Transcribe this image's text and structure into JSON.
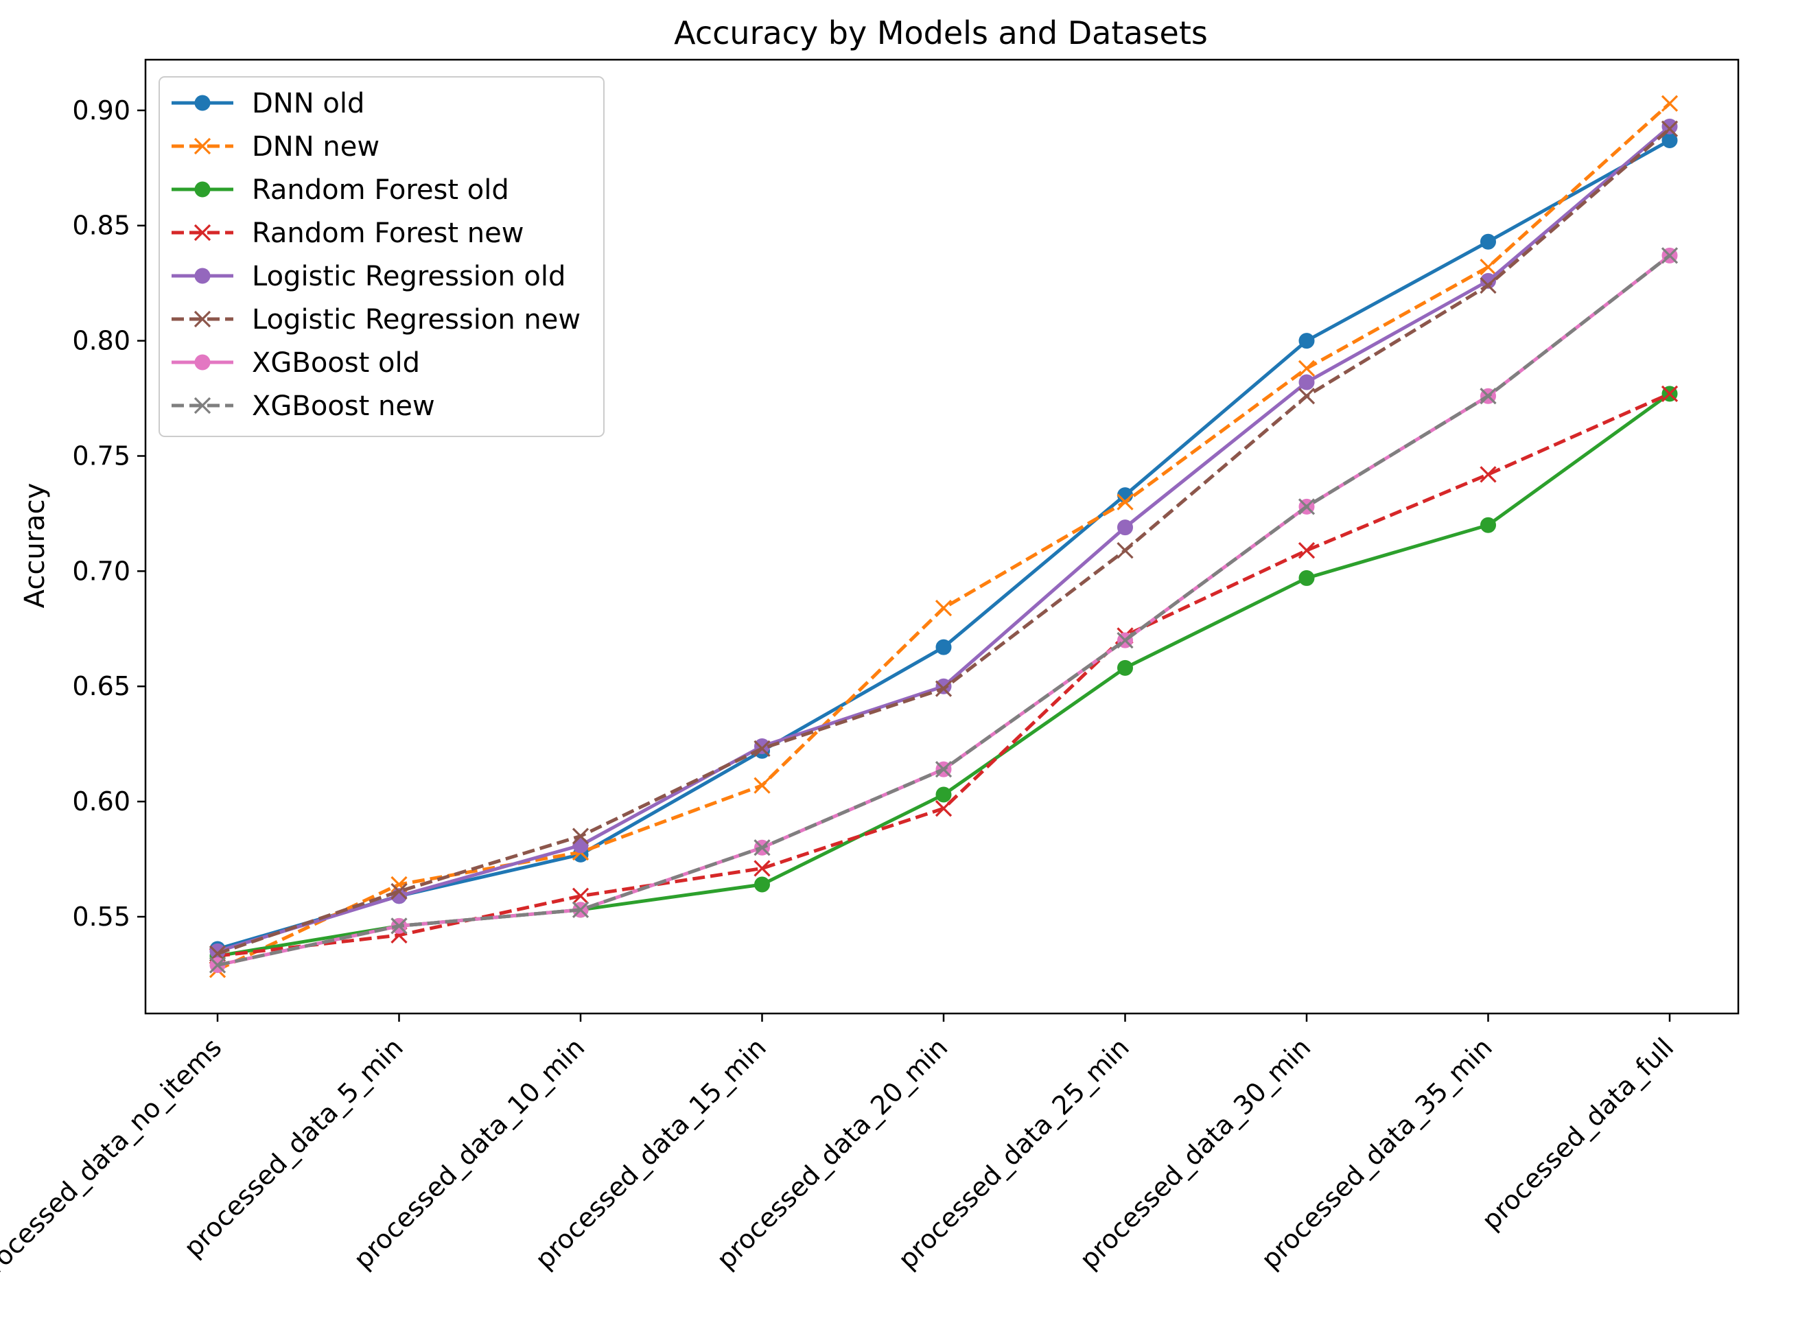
{
  "chart_data": {
    "type": "line",
    "title": "Accuracy by Models and Datasets",
    "xlabel": "",
    "ylabel": "Accuracy",
    "ylim": [
      0.508,
      0.922
    ],
    "yticks": [
      0.55,
      0.6,
      0.65,
      0.7,
      0.75,
      0.8,
      0.85,
      0.9
    ],
    "ytick_labels": [
      "0.55",
      "0.60",
      "0.65",
      "0.70",
      "0.75",
      "0.80",
      "0.85",
      "0.90"
    ],
    "grid": false,
    "legend_position": "top-left",
    "categories": [
      "processed_data_no_items",
      "processed_data_5_min",
      "processed_data_10_min",
      "processed_data_15_min",
      "processed_data_20_min",
      "processed_data_25_min",
      "processed_data_30_min",
      "processed_data_35_min",
      "processed_data_full"
    ],
    "series": [
      {
        "name": "DNN old",
        "color": "#1f77b4",
        "style": "solid",
        "marker": "circle",
        "values": [
          0.536,
          0.559,
          0.577,
          0.622,
          0.667,
          0.733,
          0.8,
          0.843,
          0.887
        ]
      },
      {
        "name": "DNN new",
        "color": "#ff7f0e",
        "style": "dashed",
        "marker": "x",
        "values": [
          0.527,
          0.564,
          0.578,
          0.607,
          0.684,
          0.73,
          0.788,
          0.832,
          0.903
        ]
      },
      {
        "name": "Random Forest old",
        "color": "#2ca02c",
        "style": "solid",
        "marker": "circle",
        "values": [
          0.533,
          0.546,
          0.553,
          0.564,
          0.603,
          0.658,
          0.697,
          0.72,
          0.777
        ]
      },
      {
        "name": "Random Forest new",
        "color": "#d62728",
        "style": "dashed",
        "marker": "x",
        "values": [
          0.533,
          0.542,
          0.559,
          0.571,
          0.597,
          0.672,
          0.709,
          0.742,
          0.777
        ]
      },
      {
        "name": "Logistic Regression old",
        "color": "#9467bd",
        "style": "solid",
        "marker": "circle",
        "values": [
          0.535,
          0.559,
          0.581,
          0.624,
          0.65,
          0.719,
          0.782,
          0.826,
          0.893
        ]
      },
      {
        "name": "Logistic Regression new",
        "color": "#8c564b",
        "style": "dashed",
        "marker": "x",
        "values": [
          0.534,
          0.561,
          0.585,
          0.623,
          0.649,
          0.709,
          0.776,
          0.824,
          0.892
        ]
      },
      {
        "name": "XGBoost old",
        "color": "#e377c2",
        "style": "solid",
        "marker": "circle",
        "values": [
          0.529,
          0.546,
          0.553,
          0.58,
          0.614,
          0.67,
          0.728,
          0.776,
          0.837
        ]
      },
      {
        "name": "XGBoost new",
        "color": "#7f7f7f",
        "style": "dashed",
        "marker": "x",
        "values": [
          0.529,
          0.546,
          0.553,
          0.58,
          0.614,
          0.67,
          0.728,
          0.776,
          0.837
        ]
      }
    ]
  }
}
